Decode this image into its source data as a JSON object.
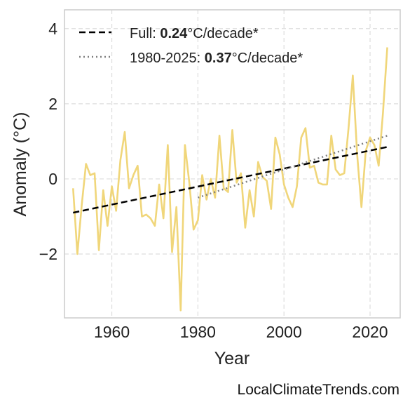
{
  "watermark": "LocalClimateTrends.com",
  "chart_data": {
    "type": "line",
    "title": "",
    "xlabel": "Year",
    "ylabel": "Anomaly (°C)",
    "xlim": [
      1949,
      2027
    ],
    "ylim": [
      -3.7,
      4.5
    ],
    "xticks": [
      1960,
      1980,
      2000,
      2020
    ],
    "yticks": [
      -2,
      0,
      2,
      4
    ],
    "ytick_labels": [
      "−2",
      "0",
      "2",
      "4"
    ],
    "grid": true,
    "legend_position": "top-left",
    "colors": {
      "series": "#f0d67a",
      "full_trend": "#000000",
      "recent_trend": "#808080",
      "grid": "#dddddd",
      "frame": "#cccccc"
    },
    "series": [
      {
        "x": [
          1951,
          1952,
          1953,
          1954,
          1955,
          1956,
          1957,
          1958,
          1959,
          1960,
          1961,
          1962,
          1963,
          1964,
          1965,
          1966,
          1967,
          1968,
          1969,
          1970,
          1971,
          1972,
          1973,
          1974,
          1975,
          1976,
          1977,
          1978,
          1979,
          1980,
          1981,
          1982,
          1983,
          1984,
          1985,
          1986,
          1987,
          1988,
          1989,
          1990,
          1991,
          1992,
          1993,
          1994,
          1995,
          1996,
          1997,
          1998,
          1999,
          2000,
          2001,
          2002,
          2003,
          2004,
          2005,
          2006,
          2007,
          2008,
          2009,
          2010,
          2011,
          2012,
          2013,
          2014,
          2015,
          2016,
          2017,
          2018,
          2019,
          2020,
          2021,
          2022,
          2023,
          2024
        ],
        "values": [
          -0.25,
          -2.0,
          -0.7,
          0.4,
          0.1,
          0.15,
          -1.9,
          -0.3,
          -1.25,
          -0.2,
          -0.85,
          0.5,
          1.25,
          -0.25,
          0.1,
          0.35,
          -1.0,
          -0.95,
          -1.05,
          -1.25,
          -0.15,
          -1.05,
          0.9,
          -1.95,
          -0.75,
          -3.5,
          0.9,
          -0.1,
          -1.35,
          -1.1,
          0.1,
          -0.55,
          0.0,
          -0.5,
          1.15,
          -0.25,
          -0.35,
          1.3,
          -0.1,
          0.15,
          -1.3,
          -0.3,
          -1.0,
          0.45,
          0.05,
          -0.05,
          -0.8,
          1.1,
          0.65,
          -0.15,
          -0.5,
          -0.75,
          -0.2,
          1.1,
          1.35,
          0.3,
          0.35,
          -0.1,
          -0.15,
          -0.15,
          1.15,
          0.25,
          0.1,
          0.15,
          1.35,
          2.75,
          0.65,
          -0.75,
          0.75,
          1.1,
          0.9,
          0.35,
          1.75,
          3.5
        ]
      }
    ],
    "trends": [
      {
        "key": "full",
        "name_prefix": "Full: ",
        "rate": "0.24",
        "unit": "°C/decade*",
        "style": "dashed",
        "x": [
          1951,
          2024
        ],
        "y": [
          -0.9,
          0.85
        ]
      },
      {
        "key": "recent",
        "name_prefix": "1980-2025: ",
        "rate": "0.37",
        "unit": "°C/decade*",
        "style": "dotted",
        "x": [
          1980,
          2024
        ],
        "y": [
          -0.5,
          1.15
        ]
      }
    ]
  }
}
